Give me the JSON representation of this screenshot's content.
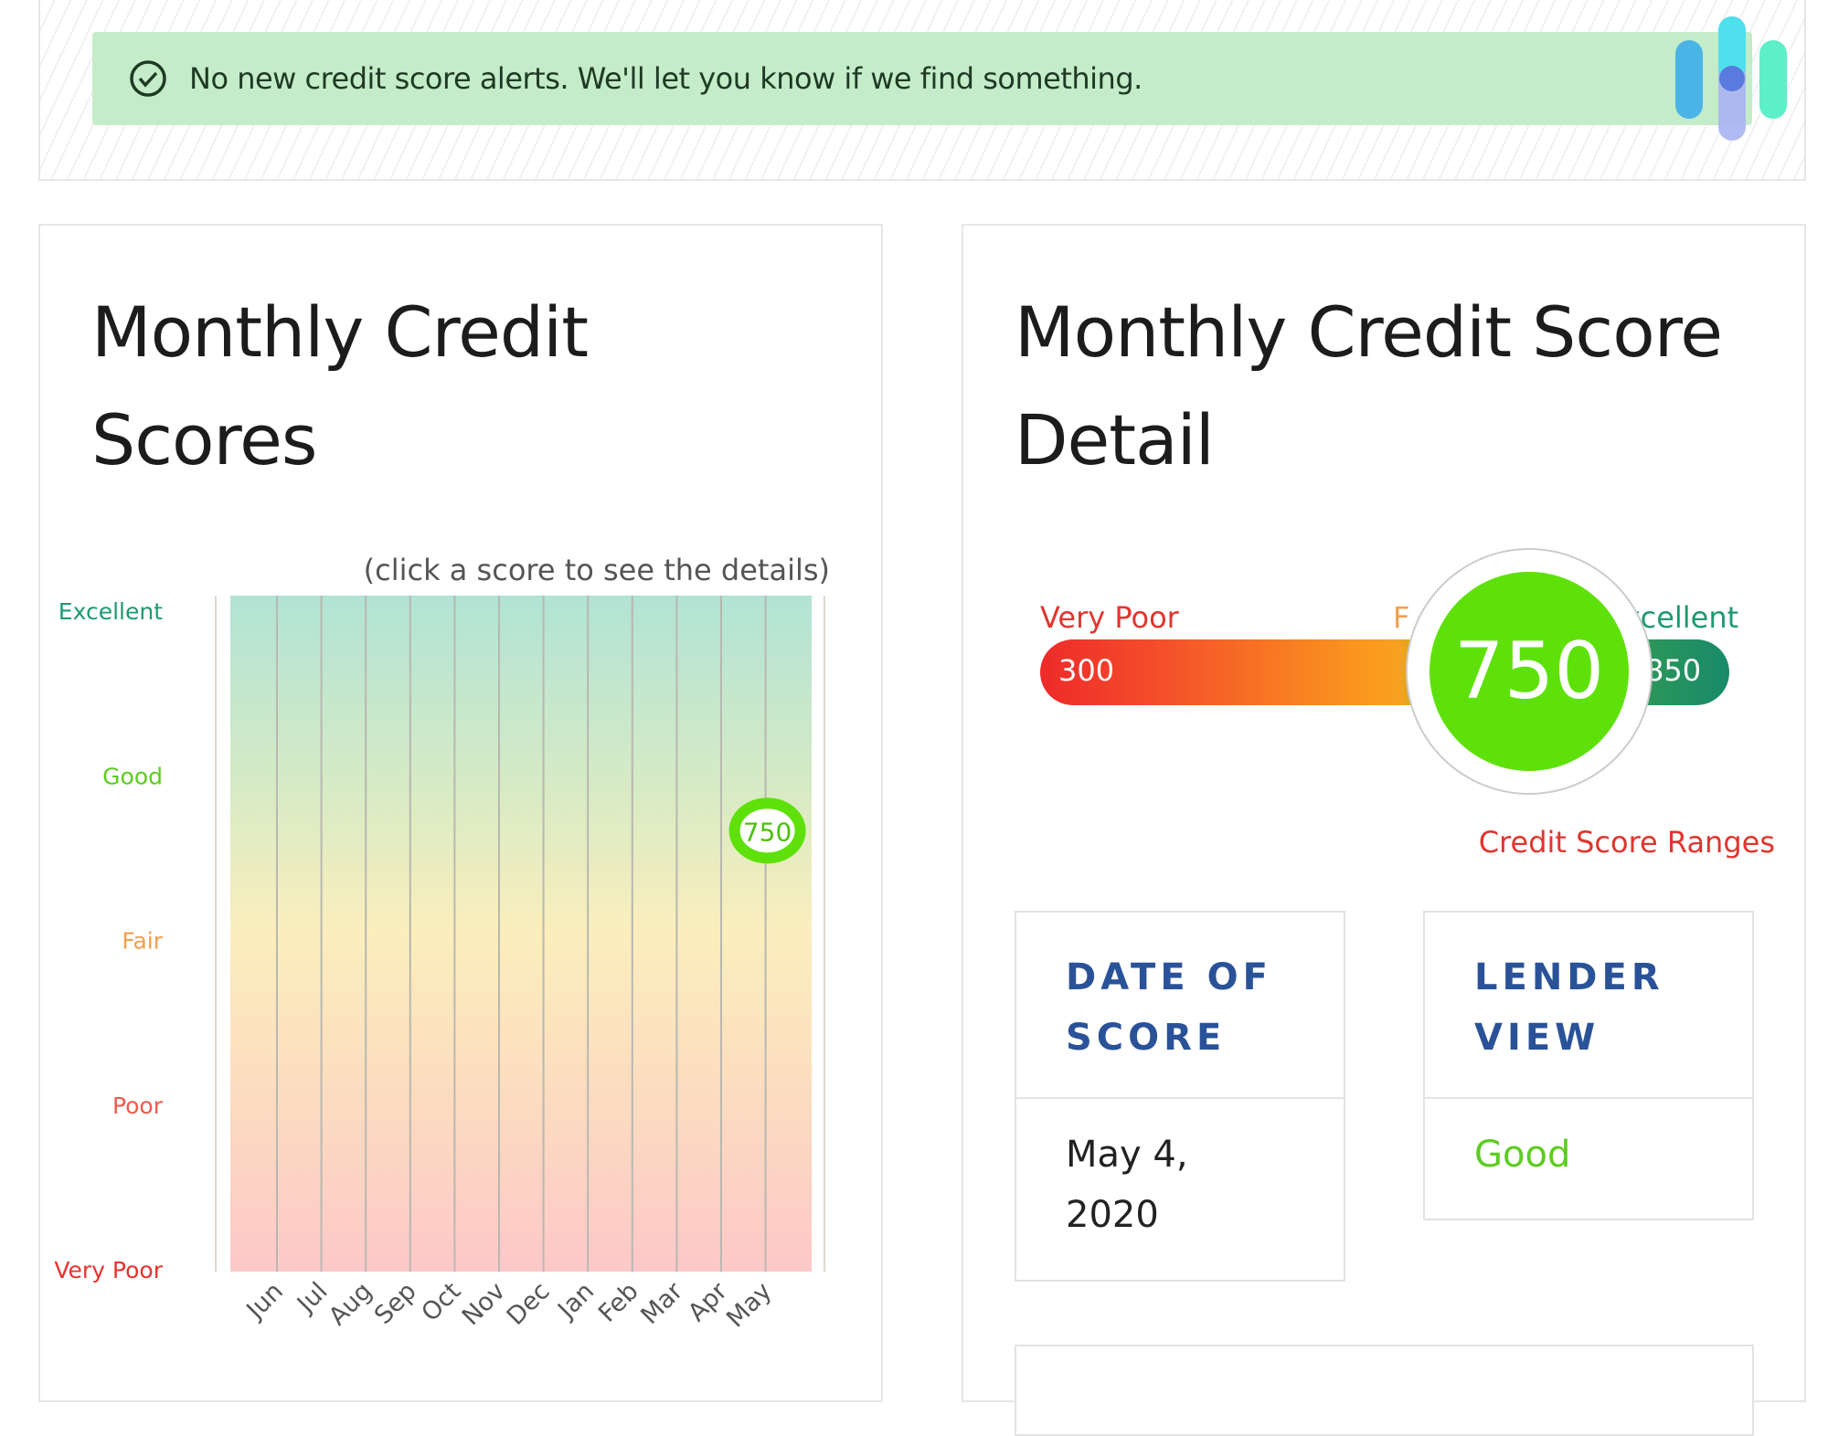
{
  "alert": {
    "icon": "check-circle-icon",
    "message": "No new credit score alerts. We'll let you know if we find something.",
    "color": "#c4ecc8"
  },
  "logo": {
    "icon": "brand-logo"
  },
  "left": {
    "title_line1": "Monthly Credit",
    "title_line2": "Scores",
    "hint": "(click a score to see the details)"
  },
  "chart_data": {
    "type": "scatter",
    "title": "",
    "y_levels": [
      "Excellent",
      "Good",
      "Fair",
      "Poor",
      "Very Poor"
    ],
    "y_level_colors": [
      "#1e9a6e",
      "#5ccc1e",
      "#f0a050",
      "#ee5a4a",
      "#e8322e"
    ],
    "categories": [
      "Jun",
      "Jul",
      "Aug",
      "Sep",
      "Oct",
      "Nov",
      "Dec",
      "Jan",
      "Feb",
      "Mar",
      "Apr",
      "May"
    ],
    "points": [
      {
        "x": "May",
        "y": 750,
        "label": "750"
      }
    ],
    "grid": true,
    "marker_color": "#5ee10a"
  },
  "right": {
    "title_line1": "Monthly Credit Score",
    "title_line2": "Detail",
    "gauge": {
      "min_label": "Very Poor",
      "max_label": "Excellent",
      "min": "300",
      "max": "850",
      "hidden_label_fragment": "F",
      "score": "750",
      "score_value": 750,
      "score_color": "#5ee10a"
    },
    "ranges_link": "Credit Score Ranges",
    "boxes": [
      {
        "header_line1": "DATE OF",
        "header_line2": "SCORE",
        "value_line1": "May 4,",
        "value_line2": "2020"
      },
      {
        "header_line1": "LENDER",
        "header_line2": "VIEW",
        "value_line1": "Good",
        "value_color": "#5ccc1e"
      }
    ]
  }
}
